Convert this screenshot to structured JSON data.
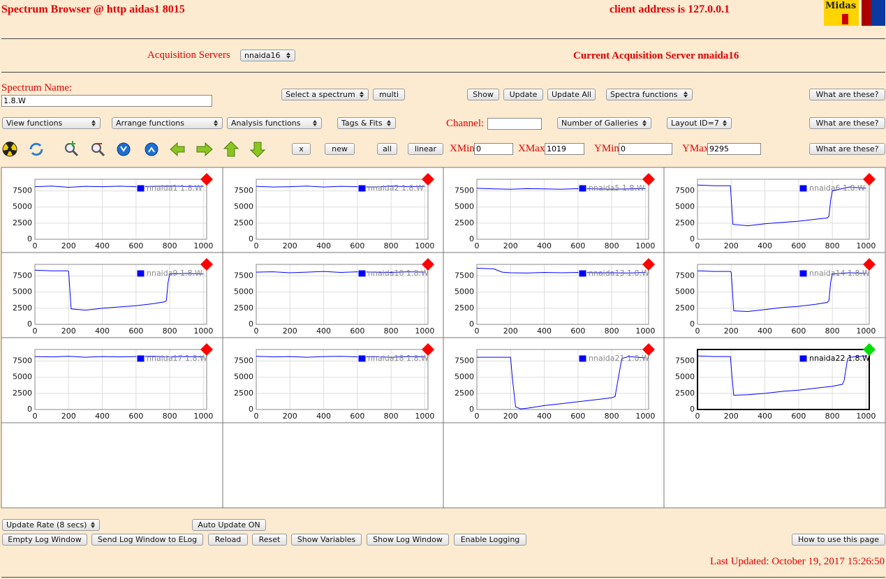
{
  "header": {
    "title": "Spectrum Browser @ http aidas1 8015",
    "client": "client address is 127.0.0.1",
    "logo": "Midas"
  },
  "servers": {
    "label": "Acquisition Servers",
    "selected": "nnaida16",
    "current": "Current Acquisition Server nnaida16"
  },
  "controls": {
    "spectrum_label": "Spectrum Name:",
    "spectrum_name": "1.8.W",
    "select_spectrum": "Select a spectrum",
    "multi": "multi",
    "show": "Show",
    "update": "Update",
    "update_all": "Update All",
    "spectra_functions": "Spectra functions",
    "help": "What are these?",
    "view_functions": "View functions",
    "arrange_functions": "Arrange functions",
    "analysis_functions": "Analysis functions",
    "tags_fits": "Tags & Fits",
    "channel_label": "Channel:",
    "galleries": "Number of Galleries",
    "layout": "Layout ID=7",
    "clear": "x",
    "new": "new",
    "all": "all",
    "scale": "linear",
    "xmin_label": "XMin",
    "xmin": 0,
    "xmax_label": "XMax",
    "xmax": 1019,
    "ymin_label": "YMin",
    "ymin": 0,
    "ymax_label": "YMax",
    "ymax": 9295
  },
  "chart_data": [
    {
      "type": "line",
      "x": [
        0,
        100,
        200,
        300,
        400,
        500,
        600,
        700,
        800,
        900,
        1000
      ],
      "series": [
        {
          "name": "nnaida1 1.8.W",
          "color": "#0000ff",
          "values": [
            8150,
            8250,
            8050,
            8200,
            8150,
            8220,
            8150,
            8200,
            8250,
            8180,
            8200
          ]
        }
      ],
      "xlim": [
        0,
        1019
      ],
      "ylim": [
        0,
        9295
      ],
      "xticks": [
        0,
        200,
        400,
        600,
        800,
        1000
      ],
      "yticks": [
        0,
        2500,
        5000,
        7500
      ],
      "grid": true,
      "status_color": "#ff0000"
    },
    {
      "type": "line",
      "x": [
        0,
        100,
        200,
        300,
        400,
        500,
        600,
        700,
        800,
        900,
        1000
      ],
      "series": [
        {
          "name": "nnaida2 1.8.W",
          "color": "#0000ff",
          "values": [
            8200,
            8100,
            8150,
            8250,
            8100,
            8200,
            8150,
            8100,
            8250,
            8150,
            8200
          ]
        }
      ],
      "xlim": [
        0,
        1019
      ],
      "ylim": [
        0,
        9295
      ],
      "xticks": [
        0,
        200,
        400,
        600,
        800,
        1000
      ],
      "yticks": [
        0,
        2500,
        5000,
        7500
      ],
      "grid": true,
      "status_color": "#ff0000"
    },
    {
      "type": "line",
      "x": [
        0,
        100,
        200,
        300,
        400,
        500,
        600,
        700,
        800,
        900,
        1000
      ],
      "series": [
        {
          "name": "nnaida5 1.8.W",
          "color": "#0000ff",
          "values": [
            7900,
            7800,
            7750,
            7850,
            7800,
            7750,
            7850,
            7800,
            7750,
            7800,
            7850
          ]
        }
      ],
      "xlim": [
        0,
        1019
      ],
      "ylim": [
        0,
        9295
      ],
      "xticks": [
        0,
        200,
        400,
        600,
        800,
        1000
      ],
      "yticks": [
        0,
        2500,
        5000,
        7500
      ],
      "grid": true,
      "status_color": "#ff0000"
    },
    {
      "type": "line",
      "x": [
        0,
        100,
        190,
        195,
        210,
        300,
        400,
        500,
        600,
        700,
        770,
        780,
        790,
        800,
        900,
        1000
      ],
      "series": [
        {
          "name": "nnaida6 1.8.W",
          "color": "#0000ff",
          "values": [
            8400,
            8300,
            8300,
            8300,
            2300,
            2100,
            2400,
            2600,
            2800,
            3100,
            3300,
            3600,
            6000,
            7500,
            8100,
            7900
          ]
        }
      ],
      "xlim": [
        0,
        1019
      ],
      "ylim": [
        0,
        9295
      ],
      "xticks": [
        0,
        200,
        400,
        600,
        800,
        1000
      ],
      "yticks": [
        0,
        2500,
        5000,
        7500
      ],
      "grid": true,
      "status_color": "#ff0000"
    },
    {
      "type": "line",
      "x": [
        0,
        100,
        195,
        200,
        215,
        300,
        400,
        500,
        600,
        700,
        770,
        780,
        790,
        800,
        900,
        1000
      ],
      "series": [
        {
          "name": "nnaida9 1.8.W",
          "color": "#0000ff",
          "values": [
            8400,
            8300,
            8300,
            8200,
            2400,
            2200,
            2500,
            2700,
            2900,
            3200,
            3500,
            3700,
            6500,
            7800,
            7900,
            7800
          ]
        }
      ],
      "xlim": [
        0,
        1019
      ],
      "ylim": [
        0,
        9295
      ],
      "xticks": [
        0,
        200,
        400,
        600,
        800,
        1000
      ],
      "yticks": [
        0,
        2500,
        5000,
        7500
      ],
      "grid": true,
      "status_color": "#ff0000"
    },
    {
      "type": "line",
      "x": [
        0,
        100,
        200,
        300,
        400,
        500,
        600,
        700,
        800,
        900,
        1000
      ],
      "series": [
        {
          "name": "nnaida10 1.8.W",
          "color": "#0000ff",
          "values": [
            8100,
            8150,
            8000,
            8100,
            8200,
            8050,
            8150,
            8100,
            8050,
            8150,
            8100
          ]
        }
      ],
      "xlim": [
        0,
        1019
      ],
      "ylim": [
        0,
        9295
      ],
      "xticks": [
        0,
        200,
        400,
        600,
        800,
        1000
      ],
      "yticks": [
        0,
        2500,
        5000,
        7500
      ],
      "grid": true,
      "status_color": "#ff0000"
    },
    {
      "type": "line",
      "x": [
        0,
        100,
        150,
        200,
        300,
        400,
        500,
        600,
        700,
        800,
        900,
        1000
      ],
      "series": [
        {
          "name": "nnaida13 1.8.W",
          "color": "#0000ff",
          "values": [
            8700,
            8600,
            8100,
            8000,
            7950,
            8050,
            8000,
            8050,
            8000,
            8000,
            7950,
            8050
          ]
        }
      ],
      "xlim": [
        0,
        1019
      ],
      "ylim": [
        0,
        9295
      ],
      "xticks": [
        0,
        200,
        400,
        600,
        800,
        1000
      ],
      "yticks": [
        0,
        2500,
        5000,
        7500
      ],
      "grid": true,
      "status_color": "#ff0000"
    },
    {
      "type": "line",
      "x": [
        0,
        100,
        195,
        200,
        215,
        300,
        400,
        500,
        600,
        700,
        770,
        780,
        790,
        800,
        900,
        1000
      ],
      "series": [
        {
          "name": "nnaida14 1.8.W",
          "color": "#0000ff",
          "values": [
            8300,
            8200,
            8200,
            8100,
            2100,
            2000,
            2300,
            2600,
            2800,
            3100,
            3400,
            3700,
            6500,
            7800,
            8000,
            7900
          ]
        }
      ],
      "xlim": [
        0,
        1019
      ],
      "ylim": [
        0,
        9295
      ],
      "xticks": [
        0,
        200,
        400,
        600,
        800,
        1000
      ],
      "yticks": [
        0,
        2500,
        5000,
        7500
      ],
      "grid": true,
      "status_color": "#ff0000"
    },
    {
      "type": "line",
      "x": [
        0,
        100,
        200,
        300,
        400,
        500,
        600,
        700,
        800,
        900,
        1000
      ],
      "series": [
        {
          "name": "nnaida17 1.8.W",
          "color": "#0000ff",
          "values": [
            8200,
            8150,
            8250,
            8100,
            8200,
            8150,
            8200,
            8250,
            8150,
            8200,
            8150
          ]
        }
      ],
      "xlim": [
        0,
        1019
      ],
      "ylim": [
        0,
        9295
      ],
      "xticks": [
        0,
        200,
        400,
        600,
        800,
        1000
      ],
      "yticks": [
        0,
        2500,
        5000,
        7500
      ],
      "grid": true,
      "status_color": "#ff0000"
    },
    {
      "type": "line",
      "x": [
        0,
        100,
        200,
        300,
        400,
        500,
        600,
        700,
        800,
        900,
        1000
      ],
      "series": [
        {
          "name": "nnaida18 1.8.W",
          "color": "#0000ff",
          "values": [
            8250,
            8150,
            8200,
            8100,
            8200,
            8250,
            8150,
            8200,
            8100,
            8200,
            8150
          ]
        }
      ],
      "xlim": [
        0,
        1019
      ],
      "ylim": [
        0,
        9295
      ],
      "xticks": [
        0,
        200,
        400,
        600,
        800,
        1000
      ],
      "yticks": [
        0,
        2500,
        5000,
        7500
      ],
      "grid": true,
      "status_color": "#ff0000"
    },
    {
      "type": "line",
      "x": [
        0,
        100,
        200,
        210,
        230,
        260,
        300,
        400,
        500,
        600,
        700,
        800,
        820,
        840,
        860,
        900,
        1000
      ],
      "series": [
        {
          "name": "nnaida21 1.8.W",
          "color": "#0000ff",
          "values": [
            8100,
            8100,
            8100,
            5000,
            400,
            100,
            200,
            600,
            900,
            1200,
            1500,
            1800,
            2000,
            5000,
            7900,
            8200,
            8000
          ]
        }
      ],
      "xlim": [
        0,
        1019
      ],
      "ylim": [
        0,
        9295
      ],
      "xticks": [
        0,
        200,
        400,
        600,
        800,
        1000
      ],
      "yticks": [
        0,
        2500,
        5000,
        7500
      ],
      "grid": true,
      "status_color": "#ff0000"
    },
    {
      "type": "line",
      "x": [
        0,
        100,
        195,
        205,
        215,
        300,
        400,
        500,
        600,
        700,
        800,
        860,
        870,
        890,
        900,
        1000
      ],
      "series": [
        {
          "name": "nnaida22 1.8.W",
          "color": "#0000ff",
          "values": [
            8300,
            8200,
            8200,
            5000,
            2200,
            2300,
            2500,
            2800,
            3000,
            3300,
            3600,
            3900,
            4500,
            7800,
            8100,
            8300
          ]
        }
      ],
      "xlim": [
        0,
        1019
      ],
      "ylim": [
        0,
        9295
      ],
      "xticks": [
        0,
        200,
        400,
        600,
        800,
        1000
      ],
      "yticks": [
        0,
        2500,
        5000,
        7500
      ],
      "grid": true,
      "status_color": "#00dd00",
      "selected": true
    }
  ],
  "footer": {
    "update_rate": "Update Rate (8 secs)",
    "auto_update": "Auto Update ON",
    "buttons": [
      "Empty Log Window",
      "Send Log Window to ELog",
      "Reload",
      "Reset",
      "Show Variables",
      "Show Log Window",
      "Enable Logging"
    ],
    "how_to": "How to use this page",
    "last_updated": "Last Updated: October 19, 2017 15:26:50"
  }
}
